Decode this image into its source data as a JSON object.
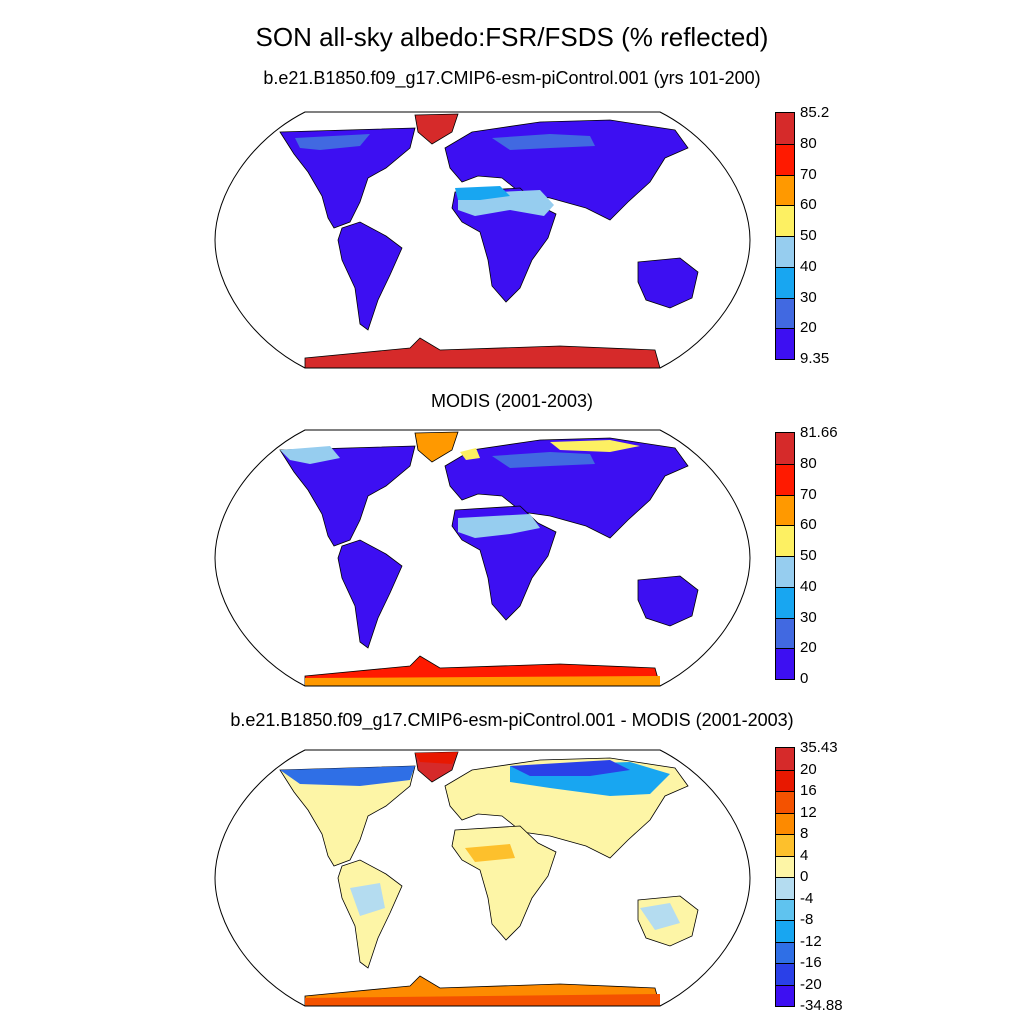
{
  "title": "SON all-sky albedo:FSR/FSDS (% reflected)",
  "panels": [
    {
      "title": "b.e21.B1850.f09_g17.CMIP6-esm-piControl.001 (yrs 101-200)",
      "colorbar": {
        "labels": [
          "85.2",
          "80",
          "70",
          "60",
          "50",
          "40",
          "30",
          "20",
          "9.35"
        ],
        "colors": [
          "#d62a2a",
          "#ff1a00",
          "#ff9900",
          "#fdf062",
          "#96cdef",
          "#18a6f1",
          "#4169e1",
          "#3d0ff2"
        ]
      }
    },
    {
      "title": "MODIS (2001-2003)",
      "colorbar": {
        "labels": [
          "81.66",
          "80",
          "70",
          "60",
          "50",
          "40",
          "30",
          "20",
          "0"
        ],
        "colors": [
          "#d62a2a",
          "#ff1a00",
          "#ff9900",
          "#fdf062",
          "#96cdef",
          "#18a6f1",
          "#4169e1",
          "#3d0ff2"
        ]
      }
    },
    {
      "title": "b.e21.B1850.f09_g17.CMIP6-esm-piControl.001 - MODIS (2001-2003)",
      "colorbar": {
        "labels": [
          "35.43",
          "20",
          "16",
          "12",
          "8",
          "4",
          "0",
          "-4",
          "-8",
          "-12",
          "-16",
          "-20",
          "-34.88"
        ],
        "colors": [
          "#d62a2a",
          "#e81800",
          "#f45200",
          "#fd8a00",
          "#fdc02c",
          "#fdf5a6",
          "#b4dcf0",
          "#5fc3ef",
          "#18a6f1",
          "#2f6fe6",
          "#2a40e8",
          "#3d0ff2"
        ]
      }
    }
  ]
}
